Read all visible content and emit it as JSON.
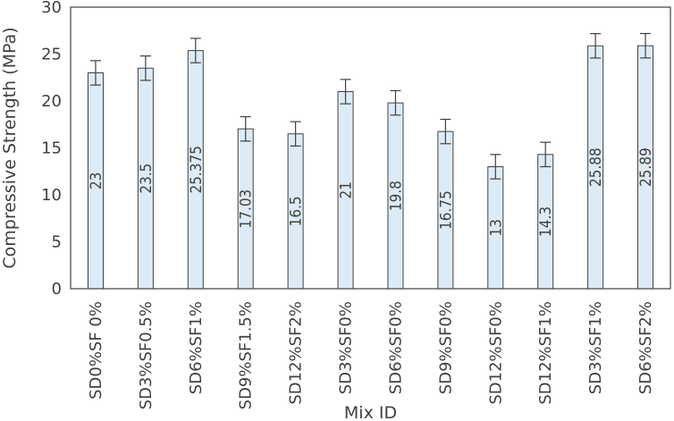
{
  "chart_data": {
    "type": "bar",
    "title": "",
    "xlabel": "Mix ID",
    "ylabel": "Compressive Strength (MPa)",
    "ylim": [
      0,
      30
    ],
    "yticks": [
      0,
      5,
      10,
      15,
      20,
      25,
      30
    ],
    "categories": [
      "SD0%SF 0%",
      "SD3%SF0.5%",
      "SD6%SF1%",
      "SD9%SF1.5%",
      "SD12%SF2%",
      "SD3%SF0%",
      "SD6%SF0%",
      "SD9%SF0%",
      "SD12%SF0%",
      "SD12%SF1%",
      "SD3%SF1%",
      "SD6%SF2%"
    ],
    "values": [
      23,
      23.5,
      25.375,
      17.03,
      16.5,
      21,
      19.8,
      16.75,
      13,
      14.3,
      25.88,
      25.89
    ],
    "data_labels": [
      "23",
      "23.5",
      "25.375",
      "17.03",
      "16.5",
      "21",
      "19.8",
      "16.75",
      "13",
      "14.3",
      "25.88",
      "25.89"
    ],
    "error": 1.3,
    "grid": false,
    "legend": "none",
    "colors": {
      "bar_fill": "#ddebf7",
      "bar_stroke": "#404040",
      "text": "#404040",
      "axis": "#404040"
    }
  }
}
